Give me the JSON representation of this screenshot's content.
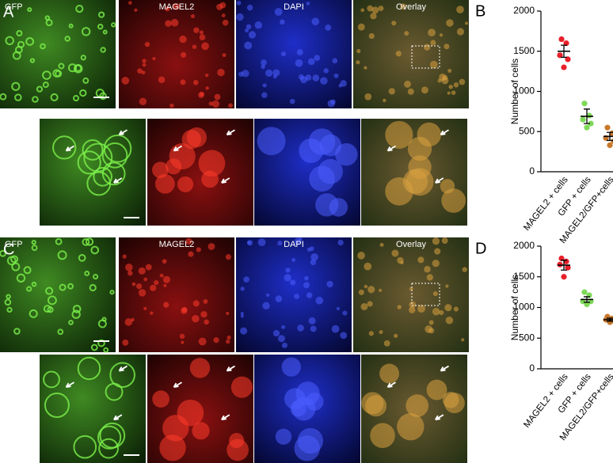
{
  "panels": [
    {
      "label": "A",
      "images": [
        "GFP",
        "MAGEL2",
        "DAPI",
        "Overlay"
      ]
    },
    {
      "label": "C",
      "images": [
        "GFP",
        "MAGEL2",
        "DAPI",
        "Overlay"
      ]
    }
  ],
  "chart_data": [
    {
      "type": "dot",
      "panel_label": "B",
      "y_label": "Number of cells",
      "categories": [
        "MAGEL2 + cells",
        "GFP + cells",
        "MAGEL2/GFP+cells"
      ],
      "colors": [
        "#e8202a",
        "#7ed957",
        "#c8782a"
      ],
      "points": [
        [
          1650,
          1600,
          1450,
          1400,
          1300
        ],
        [
          850,
          700,
          650,
          600,
          550
        ],
        [
          550,
          480,
          420,
          380,
          330
        ]
      ],
      "means": [
        1500,
        690,
        440
      ],
      "sem": [
        75,
        90,
        50
      ],
      "ylim": [
        0,
        2000
      ],
      "yticks": [
        0,
        500,
        1000,
        1500,
        2000
      ]
    },
    {
      "type": "dot",
      "panel_label": "D",
      "y_label": "Number of cells",
      "categories": [
        "MAGEL2 + cells",
        "GFP + cells",
        "MAGEL2/GFP+cells"
      ],
      "colors": [
        "#e8202a",
        "#7ed957",
        "#c8782a"
      ],
      "points": [
        [
          1800,
          1750,
          1700,
          1650,
          1500
        ],
        [
          1250,
          1200,
          1100,
          1100,
          1050
        ],
        [
          850,
          820,
          800,
          780,
          760
        ]
      ],
      "means": [
        1690,
        1130,
        800
      ],
      "sem": [
        80,
        45,
        25
      ],
      "ylim": [
        0,
        2000
      ],
      "yticks": [
        0,
        500,
        1000,
        1500,
        2000
      ]
    }
  ]
}
